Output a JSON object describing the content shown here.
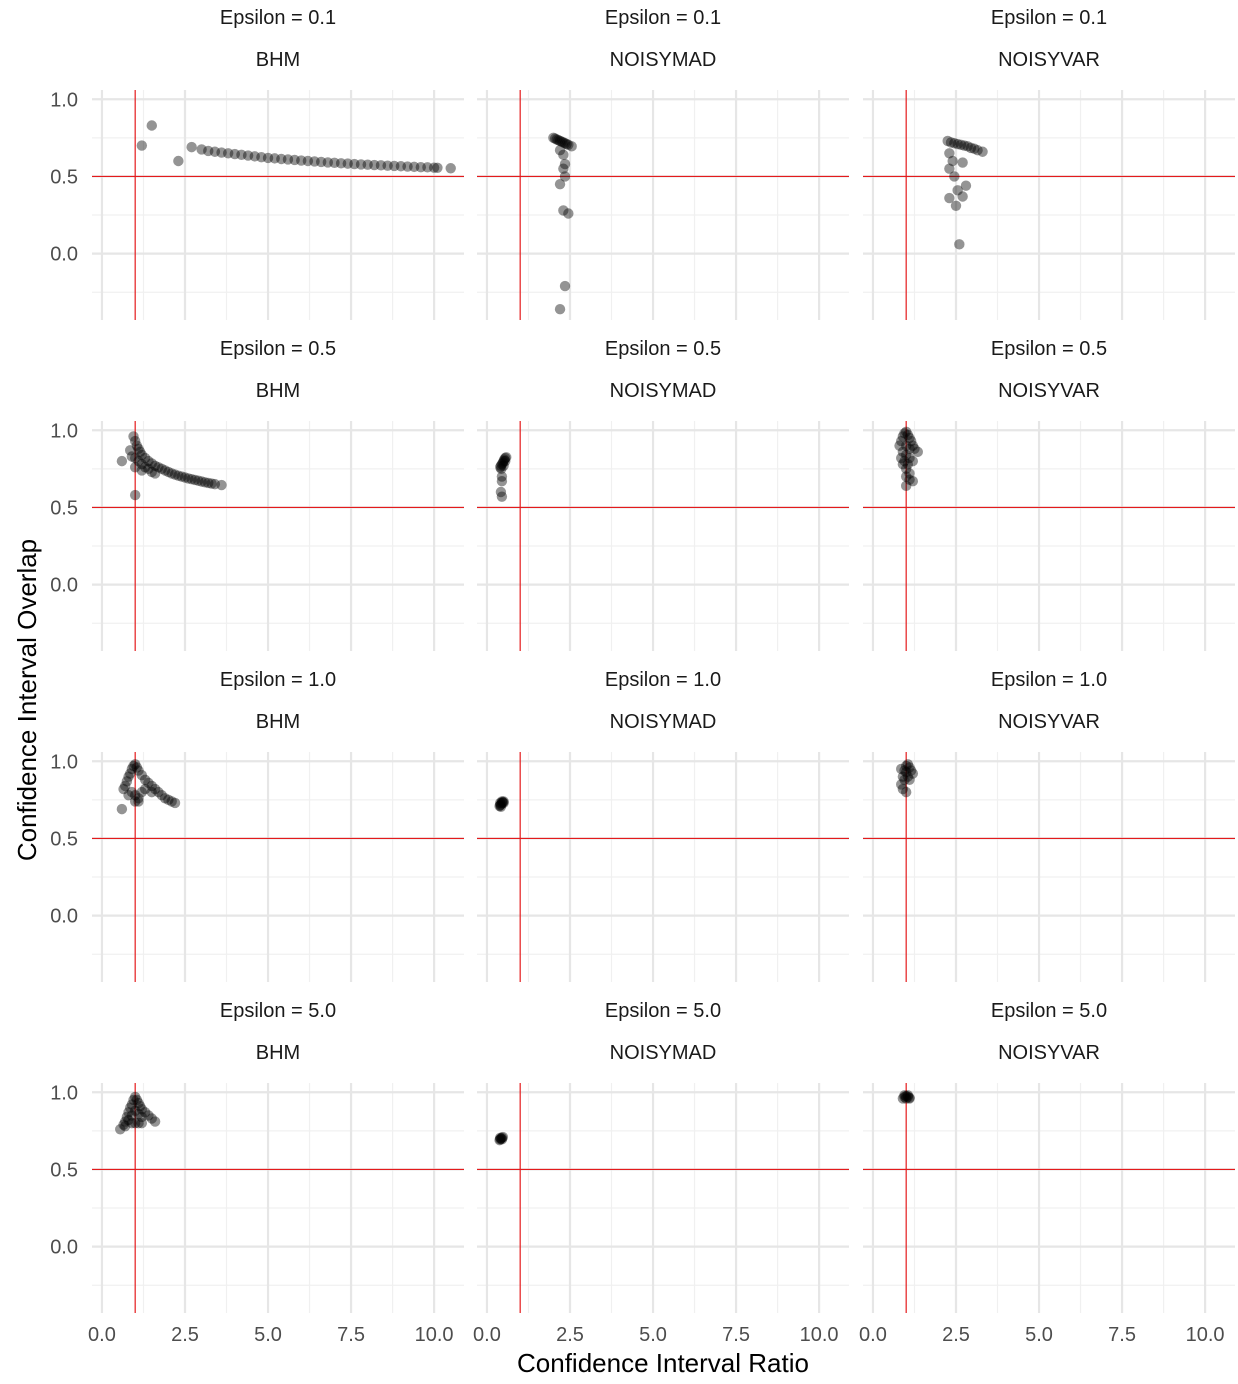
{
  "chart_data": {
    "type": "scatter",
    "facet_rows": [
      "Epsilon = 0.1",
      "Epsilon = 0.5",
      "Epsilon = 1.0",
      "Epsilon = 5.0"
    ],
    "facet_cols": [
      "BHM",
      "NOISYMAD",
      "NOISYVAR"
    ],
    "xlabel": "Confidence Interval Ratio",
    "ylabel": "Confidence Interval Overlap",
    "xlim": [
      -0.3,
      10.9
    ],
    "ylim": [
      -0.43,
      1.06
    ],
    "x_ticks": [
      "0.0",
      "2.5",
      "5.0",
      "7.5",
      "10.0"
    ],
    "x_tick_values": [
      0,
      2.5,
      5,
      7.5,
      10
    ],
    "y_ticks": [
      "1.0",
      "0.5",
      "0.0"
    ],
    "y_tick_values": [
      1,
      0.5,
      0
    ],
    "grid": true,
    "reference_lines": {
      "x": 1,
      "y": 0.5
    },
    "colors": {
      "points": "#000000",
      "reference": "#e41a1c",
      "grid": "#e6e6e6"
    },
    "panels": [
      {
        "row": 0,
        "col": 0,
        "points": [
          [
            1.2,
            0.7
          ],
          [
            1.5,
            0.83
          ],
          [
            2.3,
            0.6
          ],
          [
            2.7,
            0.69
          ],
          [
            3.0,
            0.675
          ],
          [
            3.2,
            0.665
          ],
          [
            3.4,
            0.66
          ],
          [
            3.6,
            0.655
          ],
          [
            3.8,
            0.65
          ],
          [
            4.0,
            0.645
          ],
          [
            4.2,
            0.64
          ],
          [
            4.4,
            0.635
          ],
          [
            4.6,
            0.63
          ],
          [
            4.8,
            0.625
          ],
          [
            5.0,
            0.62
          ],
          [
            5.2,
            0.617
          ],
          [
            5.4,
            0.613
          ],
          [
            5.6,
            0.61
          ],
          [
            5.8,
            0.607
          ],
          [
            6.0,
            0.603
          ],
          [
            6.2,
            0.6
          ],
          [
            6.4,
            0.597
          ],
          [
            6.6,
            0.594
          ],
          [
            6.8,
            0.591
          ],
          [
            7.0,
            0.588
          ],
          [
            7.2,
            0.585
          ],
          [
            7.4,
            0.583
          ],
          [
            7.6,
            0.58
          ],
          [
            7.8,
            0.578
          ],
          [
            8.0,
            0.576
          ],
          [
            8.2,
            0.574
          ],
          [
            8.4,
            0.572
          ],
          [
            8.6,
            0.57
          ],
          [
            8.8,
            0.568
          ],
          [
            9.0,
            0.566
          ],
          [
            9.2,
            0.564
          ],
          [
            9.4,
            0.562
          ],
          [
            9.6,
            0.56
          ],
          [
            9.8,
            0.559
          ],
          [
            10.0,
            0.557
          ],
          [
            10.1,
            0.556
          ],
          [
            10.5,
            0.553
          ]
        ]
      },
      {
        "row": 0,
        "col": 1,
        "points": [
          [
            2.0,
            0.75
          ],
          [
            2.05,
            0.745
          ],
          [
            2.1,
            0.74
          ],
          [
            2.15,
            0.735
          ],
          [
            2.2,
            0.73
          ],
          [
            2.25,
            0.725
          ],
          [
            2.3,
            0.72
          ],
          [
            2.35,
            0.715
          ],
          [
            2.4,
            0.71
          ],
          [
            2.45,
            0.705
          ],
          [
            2.55,
            0.695
          ],
          [
            2.2,
            0.67
          ],
          [
            2.3,
            0.64
          ],
          [
            2.35,
            0.58
          ],
          [
            2.3,
            0.55
          ],
          [
            2.35,
            0.5
          ],
          [
            2.2,
            0.45
          ],
          [
            2.3,
            0.28
          ],
          [
            2.45,
            0.26
          ],
          [
            2.35,
            -0.21
          ],
          [
            2.2,
            -0.36
          ]
        ]
      },
      {
        "row": 0,
        "col": 2,
        "points": [
          [
            2.25,
            0.73
          ],
          [
            2.35,
            0.72
          ],
          [
            2.45,
            0.715
          ],
          [
            2.55,
            0.71
          ],
          [
            2.65,
            0.705
          ],
          [
            2.75,
            0.7
          ],
          [
            2.85,
            0.695
          ],
          [
            2.95,
            0.685
          ],
          [
            3.05,
            0.68
          ],
          [
            3.15,
            0.67
          ],
          [
            3.3,
            0.66
          ],
          [
            2.3,
            0.65
          ],
          [
            2.4,
            0.6
          ],
          [
            2.7,
            0.59
          ],
          [
            2.3,
            0.55
          ],
          [
            2.45,
            0.5
          ],
          [
            2.8,
            0.44
          ],
          [
            2.55,
            0.41
          ],
          [
            2.7,
            0.37
          ],
          [
            2.3,
            0.36
          ],
          [
            2.5,
            0.31
          ],
          [
            2.6,
            0.06
          ]
        ]
      },
      {
        "row": 1,
        "col": 0,
        "points": [
          [
            0.6,
            0.8
          ],
          [
            0.85,
            0.87
          ],
          [
            0.95,
            0.96
          ],
          [
            1.0,
            0.93
          ],
          [
            1.05,
            0.9
          ],
          [
            1.1,
            0.88
          ],
          [
            1.15,
            0.86
          ],
          [
            1.2,
            0.84
          ],
          [
            1.3,
            0.82
          ],
          [
            1.4,
            0.8
          ],
          [
            1.5,
            0.785
          ],
          [
            1.6,
            0.77
          ],
          [
            1.7,
            0.76
          ],
          [
            1.8,
            0.75
          ],
          [
            1.9,
            0.74
          ],
          [
            2.0,
            0.73
          ],
          [
            2.1,
            0.72
          ],
          [
            2.2,
            0.713
          ],
          [
            2.3,
            0.706
          ],
          [
            2.4,
            0.7
          ],
          [
            2.5,
            0.694
          ],
          [
            2.6,
            0.688
          ],
          [
            2.7,
            0.683
          ],
          [
            2.8,
            0.678
          ],
          [
            2.9,
            0.673
          ],
          [
            3.0,
            0.668
          ],
          [
            3.1,
            0.663
          ],
          [
            3.2,
            0.659
          ],
          [
            3.3,
            0.655
          ],
          [
            3.4,
            0.651
          ],
          [
            3.6,
            0.645
          ],
          [
            1.0,
            0.82
          ],
          [
            1.1,
            0.8
          ],
          [
            1.2,
            0.78
          ],
          [
            1.3,
            0.76
          ],
          [
            1.5,
            0.73
          ],
          [
            1.2,
            0.74
          ],
          [
            1.0,
            0.58
          ],
          [
            0.9,
            0.83
          ],
          [
            1.0,
            0.76
          ],
          [
            1.4,
            0.75
          ],
          [
            1.6,
            0.72
          ]
        ]
      },
      {
        "row": 1,
        "col": 1,
        "points": [
          [
            0.4,
            0.76
          ],
          [
            0.42,
            0.77
          ],
          [
            0.45,
            0.78
          ],
          [
            0.48,
            0.79
          ],
          [
            0.5,
            0.8
          ],
          [
            0.52,
            0.81
          ],
          [
            0.55,
            0.82
          ],
          [
            0.58,
            0.825
          ],
          [
            0.43,
            0.75
          ],
          [
            0.5,
            0.77
          ],
          [
            0.55,
            0.8
          ],
          [
            0.45,
            0.7
          ],
          [
            0.45,
            0.67
          ],
          [
            0.42,
            0.6
          ],
          [
            0.45,
            0.57
          ]
        ]
      },
      {
        "row": 1,
        "col": 2,
        "points": [
          [
            0.8,
            0.9
          ],
          [
            0.85,
            0.93
          ],
          [
            0.9,
            0.96
          ],
          [
            0.95,
            0.98
          ],
          [
            1.0,
            0.99
          ],
          [
            1.05,
            0.97
          ],
          [
            1.1,
            0.95
          ],
          [
            1.15,
            0.93
          ],
          [
            1.2,
            0.9
          ],
          [
            1.25,
            0.88
          ],
          [
            1.35,
            0.86
          ],
          [
            0.9,
            0.86
          ],
          [
            1.0,
            0.84
          ],
          [
            1.1,
            0.82
          ],
          [
            1.2,
            0.8
          ],
          [
            0.95,
            0.8
          ],
          [
            1.05,
            0.78
          ],
          [
            0.9,
            0.78
          ],
          [
            1.0,
            0.75
          ],
          [
            1.1,
            0.72
          ],
          [
            1.0,
            0.7
          ],
          [
            1.1,
            0.68
          ],
          [
            1.2,
            0.67
          ],
          [
            1.0,
            0.64
          ],
          [
            0.85,
            0.82
          ],
          [
            1.0,
            0.9
          ],
          [
            1.1,
            0.88
          ]
        ]
      },
      {
        "row": 2,
        "col": 0,
        "points": [
          [
            0.6,
            0.69
          ],
          [
            0.65,
            0.82
          ],
          [
            0.7,
            0.84
          ],
          [
            0.75,
            0.87
          ],
          [
            0.8,
            0.9
          ],
          [
            0.85,
            0.92
          ],
          [
            0.9,
            0.95
          ],
          [
            0.95,
            0.97
          ],
          [
            1.0,
            0.98
          ],
          [
            1.05,
            0.96
          ],
          [
            1.1,
            0.94
          ],
          [
            1.2,
            0.91
          ],
          [
            1.3,
            0.88
          ],
          [
            1.4,
            0.86
          ],
          [
            1.5,
            0.84
          ],
          [
            1.6,
            0.82
          ],
          [
            1.7,
            0.8
          ],
          [
            1.8,
            0.78
          ],
          [
            1.9,
            0.76
          ],
          [
            2.0,
            0.75
          ],
          [
            2.1,
            0.74
          ],
          [
            2.2,
            0.73
          ],
          [
            0.9,
            0.8
          ],
          [
            1.0,
            0.78
          ],
          [
            1.1,
            0.76
          ],
          [
            1.2,
            0.8
          ],
          [
            0.8,
            0.78
          ],
          [
            1.0,
            0.74
          ],
          [
            1.1,
            0.74
          ],
          [
            1.3,
            0.82
          ],
          [
            1.5,
            0.8
          ]
        ]
      },
      {
        "row": 2,
        "col": 1,
        "points": [
          [
            0.38,
            0.71
          ],
          [
            0.4,
            0.715
          ],
          [
            0.42,
            0.72
          ],
          [
            0.45,
            0.73
          ],
          [
            0.48,
            0.735
          ],
          [
            0.5,
            0.74
          ],
          [
            0.4,
            0.73
          ],
          [
            0.45,
            0.74
          ],
          [
            0.5,
            0.73
          ],
          [
            0.42,
            0.705
          ]
        ]
      },
      {
        "row": 2,
        "col": 2,
        "points": [
          [
            0.85,
            0.85
          ],
          [
            0.9,
            0.9
          ],
          [
            0.95,
            0.94
          ],
          [
            1.0,
            0.97
          ],
          [
            1.05,
            0.98
          ],
          [
            1.1,
            0.96
          ],
          [
            1.15,
            0.94
          ],
          [
            1.2,
            0.92
          ],
          [
            0.9,
            0.82
          ],
          [
            1.0,
            0.8
          ],
          [
            1.1,
            0.88
          ],
          [
            0.95,
            0.88
          ],
          [
            1.05,
            0.9
          ],
          [
            0.85,
            0.95
          ],
          [
            1.0,
            0.93
          ]
        ]
      },
      {
        "row": 3,
        "col": 0,
        "points": [
          [
            0.55,
            0.76
          ],
          [
            0.65,
            0.79
          ],
          [
            0.7,
            0.81
          ],
          [
            0.75,
            0.84
          ],
          [
            0.8,
            0.87
          ],
          [
            0.85,
            0.9
          ],
          [
            0.9,
            0.92
          ],
          [
            0.95,
            0.95
          ],
          [
            1.0,
            0.97
          ],
          [
            1.05,
            0.95
          ],
          [
            1.1,
            0.93
          ],
          [
            1.15,
            0.91
          ],
          [
            1.2,
            0.89
          ],
          [
            1.3,
            0.87
          ],
          [
            1.4,
            0.85
          ],
          [
            1.5,
            0.83
          ],
          [
            1.6,
            0.81
          ],
          [
            0.8,
            0.82
          ],
          [
            0.9,
            0.85
          ],
          [
            1.0,
            0.88
          ],
          [
            1.1,
            0.86
          ],
          [
            1.2,
            0.84
          ],
          [
            0.7,
            0.78
          ],
          [
            1.0,
            0.8
          ],
          [
            1.1,
            0.8
          ],
          [
            1.2,
            0.8
          ],
          [
            0.9,
            0.8
          ]
        ]
      },
      {
        "row": 3,
        "col": 1,
        "points": [
          [
            0.38,
            0.69
          ],
          [
            0.4,
            0.695
          ],
          [
            0.42,
            0.7
          ],
          [
            0.45,
            0.705
          ],
          [
            0.48,
            0.71
          ],
          [
            0.4,
            0.705
          ],
          [
            0.45,
            0.695
          ]
        ]
      },
      {
        "row": 3,
        "col": 2,
        "points": [
          [
            0.9,
            0.96
          ],
          [
            0.95,
            0.97
          ],
          [
            1.0,
            0.975
          ],
          [
            1.05,
            0.97
          ],
          [
            1.1,
            0.965
          ],
          [
            1.0,
            0.96
          ],
          [
            0.95,
            0.98
          ],
          [
            1.05,
            0.98
          ],
          [
            1.1,
            0.96
          ]
        ]
      }
    ]
  }
}
